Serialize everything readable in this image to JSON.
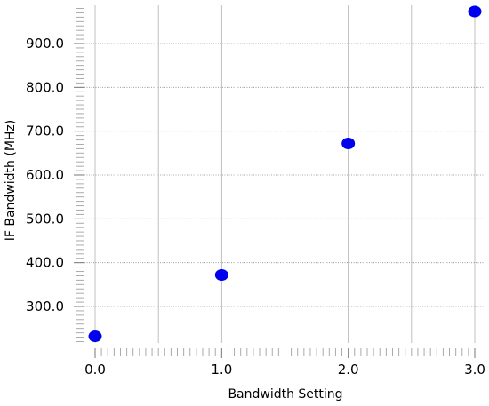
{
  "chart_data": {
    "type": "scatter",
    "title": "",
    "xlabel": "Bandwidth Setting",
    "ylabel": "IF Bandwidth (MHz)",
    "xlim": [
      -0.05,
      3.0
    ],
    "ylim": [
      210,
      985
    ],
    "x_ticks": [
      "0.0",
      "1.0",
      "2.0",
      "3.0"
    ],
    "y_ticks": [
      "300.0",
      "400.0",
      "500.0",
      "600.0",
      "700.0",
      "800.0",
      "900.0"
    ],
    "grid": true,
    "legend": "none",
    "marker_color": "#0000ee",
    "series": [
      {
        "x": [
          0,
          1,
          2,
          3
        ],
        "y": [
          232,
          372,
          672,
          973
        ]
      }
    ]
  }
}
